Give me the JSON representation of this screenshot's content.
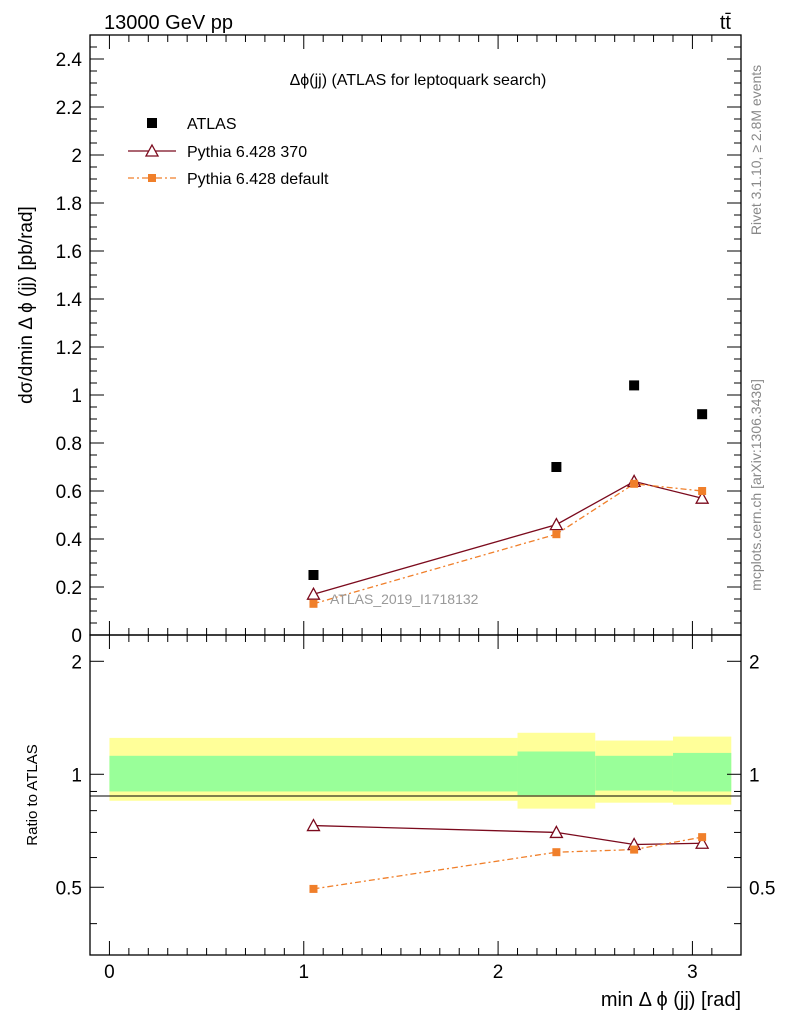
{
  "header": {
    "energy": "13000 GeV pp",
    "process": "tt̄"
  },
  "side_text": {
    "rivet": "Rivet 3.1.10, ≥ 2.8M events",
    "mcplots": "mcplots.cern.ch [arXiv:1306.3436]"
  },
  "chart_data": {
    "type": "scatter",
    "title": "Δϕ(jj) (ATLAS for leptoquark search)",
    "watermark": "ATLAS_2019_I1718132",
    "xlabel": "min Δ ϕ (jj) [rad]",
    "ylabel": "dσ/dmin Δ ϕ (jj) [pb/rad]",
    "ratio_ylabel": "Ratio to ATLAS",
    "xlim": [
      -0.1,
      3.25
    ],
    "ylim": [
      0,
      2.5
    ],
    "ratio_ylim": [
      0.33,
      2.35
    ],
    "ratio_log_scale": true,
    "x_ticks": [
      "0",
      "1",
      "2",
      "3"
    ],
    "y_ticks": [
      "0",
      "0.2",
      "0.4",
      "0.6",
      "0.8",
      "1",
      "1.2",
      "1.4",
      "1.6",
      "1.8",
      "2",
      "2.2",
      "2.4"
    ],
    "ratio_ticks": [
      "0.5",
      "1",
      "2"
    ],
    "legend_position": "top-left",
    "legend": [
      "ATLAS",
      "Pythia 6.428 370",
      "Pythia 6.428 default"
    ],
    "series": [
      {
        "name": "ATLAS",
        "color": "#000000",
        "marker": "square",
        "x": [
          1.05,
          2.3,
          2.7,
          3.05
        ],
        "y": [
          0.25,
          0.7,
          1.04,
          0.92
        ]
      },
      {
        "name": "Pythia 6.428 370",
        "color": "#7b0a1d",
        "marker": "open-triangle",
        "x": [
          1.05,
          2.3,
          2.7,
          3.05
        ],
        "y": [
          0.17,
          0.46,
          0.64,
          0.57
        ],
        "ratio": [
          0.73,
          0.7,
          0.65,
          0.655
        ]
      },
      {
        "name": "Pythia 6.428 default",
        "color": "#f07f2a",
        "marker": "small-square",
        "x": [
          1.05,
          2.3,
          2.7,
          3.05
        ],
        "y": [
          0.13,
          0.42,
          0.63,
          0.6
        ],
        "ratio": [
          0.495,
          0.62,
          0.63,
          0.68
        ]
      }
    ],
    "uncertainty_bands": {
      "bins": [
        [
          0,
          2.1
        ],
        [
          2.1,
          2.5
        ],
        [
          2.5,
          2.9
        ],
        [
          2.9,
          3.2
        ]
      ],
      "inner": [
        [
          0.9,
          1.12
        ],
        [
          0.88,
          1.15
        ],
        [
          0.905,
          1.12
        ],
        [
          0.9,
          1.14
        ]
      ],
      "outer": [
        [
          0.85,
          1.25
        ],
        [
          0.81,
          1.29
        ],
        [
          0.84,
          1.23
        ],
        [
          0.83,
          1.26
        ]
      ],
      "inner_color": "#99ff99",
      "outer_color": "#ffff99"
    }
  }
}
